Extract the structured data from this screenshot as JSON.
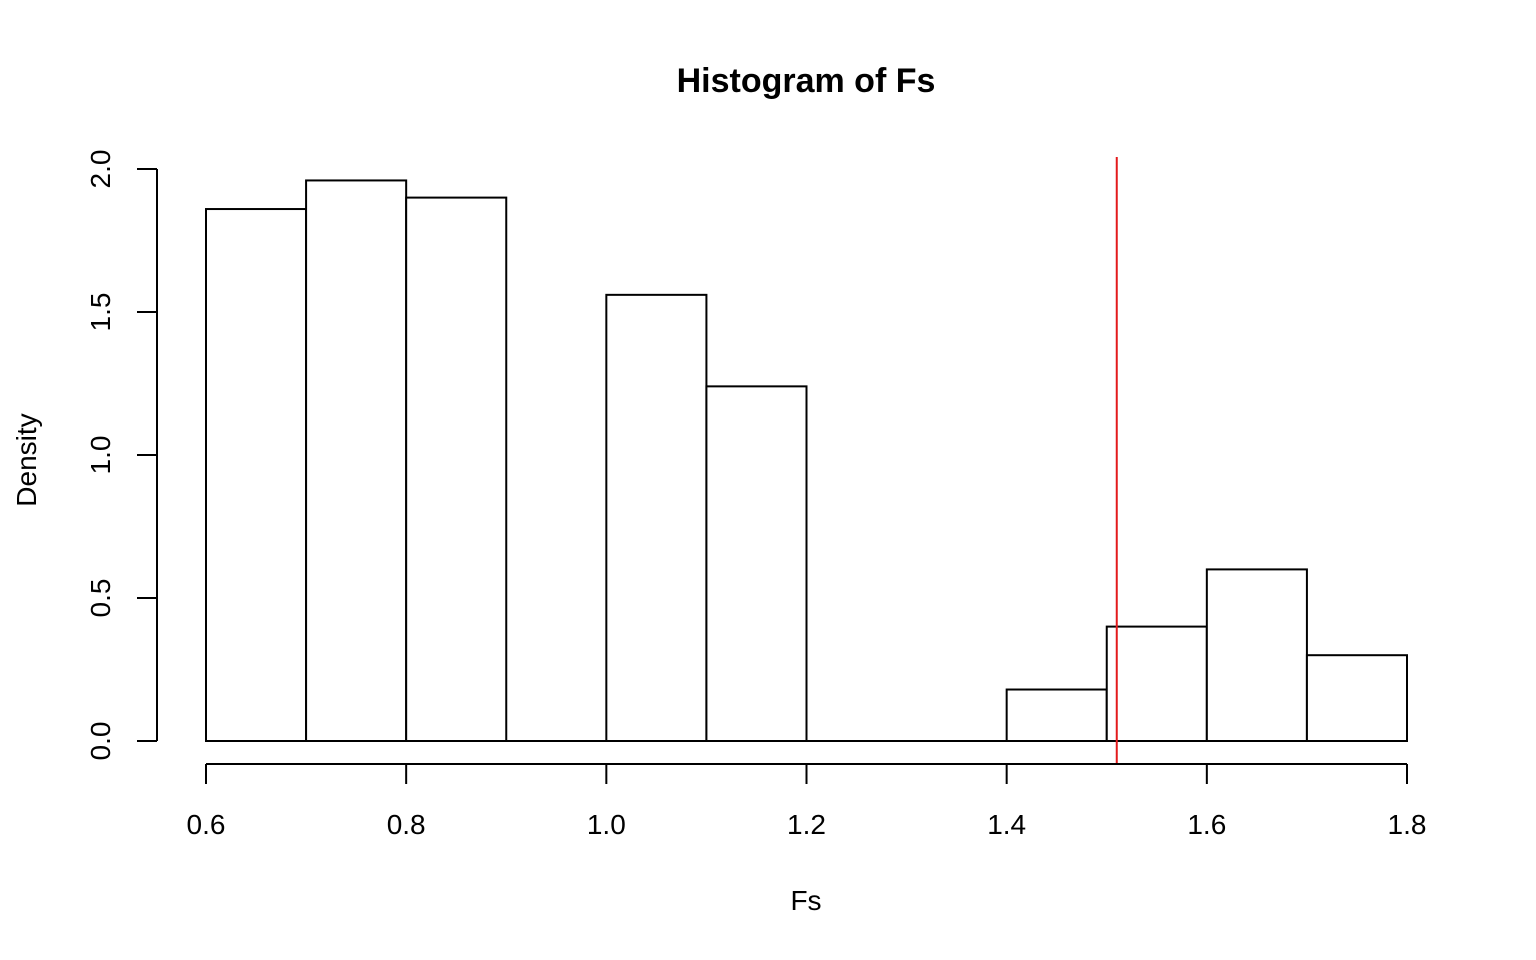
{
  "chart_data": {
    "type": "bar",
    "title": "Histogram of Fs",
    "xlabel": "Fs",
    "ylabel": "Density",
    "bin_edges": [
      0.6,
      0.7,
      0.8,
      0.9,
      1.0,
      1.1,
      1.2,
      1.3,
      1.4,
      1.5,
      1.6,
      1.7,
      1.8
    ],
    "values": [
      1.86,
      1.96,
      1.9,
      0.0,
      1.56,
      1.24,
      0.0,
      0.0,
      0.18,
      0.4,
      0.6,
      0.3
    ],
    "xlim": [
      0.6,
      1.8
    ],
    "ylim": [
      0.0,
      2.0
    ],
    "x_ticks": [
      "0.6",
      "0.8",
      "1.0",
      "1.2",
      "1.4",
      "1.6",
      "1.8"
    ],
    "y_ticks": [
      "0.0",
      "0.5",
      "1.0",
      "1.5",
      "2.0"
    ],
    "reference_line": {
      "x": 1.51,
      "color": "#e31a1c"
    },
    "grid": false,
    "bar_fill": "#ffffff",
    "bar_stroke": "#000000"
  }
}
